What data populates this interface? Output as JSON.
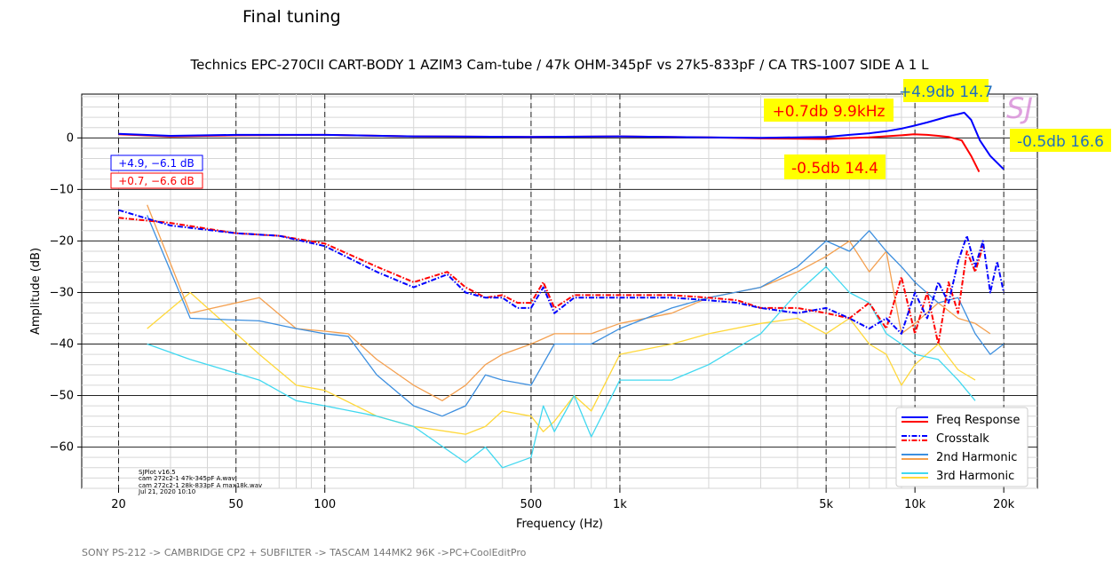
{
  "heading": "Final tuning",
  "footer": "SONY PS-212 -> CAMBRIDGE CP2 +  SUBFILTER  -> TASCAM 144MK2 96K ->PC+CoolEditPro",
  "chart_data": {
    "type": "line",
    "title": "Technics EPC-270CII CART-BODY 1 AZIM3 Cam-tube   / 47k OHM-345pF vs 27k5-833pF / CA TRS-1007 SIDE A 1  L",
    "xlabel": "Frequency (Hz)",
    "ylabel": "Amplitude (dB)",
    "x_scale": "log",
    "xlim": [
      15,
      26000
    ],
    "ylim": [
      -68,
      8.5
    ],
    "x_ticks": [
      20,
      50,
      100,
      500,
      1000,
      5000,
      10000,
      20000
    ],
    "x_tick_labels": [
      "20",
      "50",
      "100",
      "500",
      "1k",
      "5k",
      "10k",
      "20k"
    ],
    "y_ticks": [
      0,
      -10,
      -20,
      -30,
      -40,
      -50,
      -60
    ],
    "y_tick_labels": [
      "0",
      "−10",
      "−20",
      "−30",
      "−40",
      "−50",
      "−60"
    ],
    "grid": true,
    "legend_position": "bottom-right",
    "watermark": "SJ",
    "stamp_lines": [
      "SJPlot v16.5",
      "cam 272c2-1 47k-345pF A.wav",
      "cam 272c2-1 28k-833pF A max18k.wav",
      "Jul 21, 2020 10:10"
    ],
    "boxes": [
      {
        "text": "+4.9, −6.1 dB",
        "color": "#0000ff"
      },
      {
        "text": "+0.7, −6.6 dB",
        "color": "#ff0000"
      }
    ],
    "annotations": [
      {
        "text": "+4.9db 14.7",
        "color": "#1f6fbf"
      },
      {
        "text": "+0.7db 9.9kHz",
        "color": "#ff0000"
      },
      {
        "text": "-0.5db 16.6",
        "color": "#1f6fbf"
      },
      {
        "text": "-0.5db 14.4",
        "color": "#ff0000"
      }
    ],
    "series": [
      {
        "name": "Freq Response",
        "color": "#0000ff",
        "style": "solid",
        "x": [
          20,
          30,
          50,
          100,
          200,
          500,
          1000,
          2000,
          3000,
          5000,
          6000,
          7000,
          8000,
          9000,
          10000,
          11000,
          12000,
          13000,
          14000,
          14700,
          15500,
          16600,
          18000,
          20000
        ],
        "y": [
          0.8,
          0.4,
          0.6,
          0.6,
          0.3,
          0.2,
          0.3,
          0.1,
          0.0,
          0.2,
          0.6,
          0.9,
          1.3,
          1.8,
          2.4,
          3.0,
          3.6,
          4.2,
          4.6,
          4.9,
          3.5,
          -0.5,
          -3.5,
          -6.1
        ]
      },
      {
        "name": "",
        "color": "#ff0000",
        "style": "solid",
        "x": [
          20,
          30,
          50,
          100,
          200,
          500,
          1000,
          2000,
          3000,
          5000,
          7000,
          9000,
          9900,
          11000,
          12000,
          13000,
          14400,
          15500,
          16500
        ],
        "y": [
          0.7,
          0.3,
          0.5,
          0.6,
          0.3,
          0.2,
          0.3,
          0.1,
          -0.1,
          -0.2,
          0.1,
          0.5,
          0.7,
          0.6,
          0.4,
          0.2,
          -0.5,
          -3.5,
          -6.6
        ]
      },
      {
        "name": "Crosstalk",
        "color": "#0000ff",
        "style": "dashdot",
        "x": [
          20,
          30,
          50,
          70,
          100,
          150,
          200,
          260,
          300,
          350,
          400,
          450,
          500,
          550,
          600,
          700,
          1000,
          1500,
          2000,
          2500,
          3000,
          4000,
          5000,
          6000,
          7000,
          8000,
          9000,
          10000,
          11000,
          12000,
          13000,
          14000,
          15000,
          16000,
          17000,
          18000,
          19000,
          20000
        ],
        "y": [
          -14,
          -17,
          -18.5,
          -19,
          -21,
          -26,
          -29,
          -26.5,
          -30,
          -31,
          -31,
          -33,
          -33,
          -29,
          -34,
          -31,
          -31,
          -31,
          -31.5,
          -32,
          -33,
          -34,
          -33,
          -35,
          -37,
          -35,
          -38,
          -30,
          -35,
          -28,
          -32,
          -24,
          -19,
          -25,
          -20,
          -30,
          -24,
          -30
        ]
      },
      {
        "name": "",
        "color": "#ff0000",
        "style": "dashdot",
        "x": [
          20,
          30,
          50,
          70,
          100,
          150,
          200,
          260,
          300,
          350,
          400,
          450,
          500,
          550,
          600,
          700,
          1000,
          1500,
          2000,
          2500,
          3000,
          4000,
          5000,
          6000,
          7000,
          8000,
          9000,
          10000,
          11000,
          12000,
          13000,
          14000,
          15000,
          16000,
          17000
        ],
        "y": [
          -15.5,
          -16.5,
          -18.5,
          -19,
          -20.5,
          -25,
          -28,
          -26,
          -29,
          -31,
          -30.5,
          -32,
          -32,
          -28,
          -33,
          -30.5,
          -30.5,
          -30.5,
          -31,
          -31.5,
          -33,
          -33,
          -34,
          -35,
          -32,
          -37,
          -27,
          -38,
          -30,
          -40,
          -28,
          -34,
          -22,
          -26,
          -21
        ]
      },
      {
        "name": "2nd Harmonic",
        "color": "#3d8fdf",
        "style": "solid",
        "x": [
          25,
          35,
          60,
          80,
          100,
          120,
          150,
          200,
          250,
          300,
          350,
          400,
          500,
          600,
          800,
          1000,
          1500,
          2000,
          3000,
          4000,
          5000,
          6000,
          7000,
          8000,
          9000,
          10000,
          12000,
          14000,
          16000,
          18000,
          20000
        ],
        "y": [
          -15,
          -35,
          -35.5,
          -37,
          -38,
          -38.5,
          -46,
          -52,
          -54,
          -52,
          -46,
          -47,
          -48,
          -40,
          -40,
          -37,
          -33,
          -31,
          -29,
          -25,
          -20,
          -22,
          -18,
          -22,
          -25,
          -28,
          -32,
          -31,
          -38,
          -42,
          -40
        ]
      },
      {
        "name": "",
        "color": "#f4a050",
        "style": "solid",
        "x": [
          25,
          35,
          60,
          80,
          100,
          120,
          150,
          200,
          250,
          300,
          350,
          400,
          500,
          600,
          800,
          1000,
          1500,
          2000,
          3000,
          4000,
          5000,
          6000,
          7000,
          8000,
          9000,
          10000,
          12000,
          14000,
          16000,
          18000
        ],
        "y": [
          -13,
          -34,
          -31,
          -37,
          -37.5,
          -38,
          -43,
          -48,
          -51,
          -48,
          -44,
          -42,
          -40,
          -38,
          -38,
          -36,
          -34,
          -31,
          -29,
          -26,
          -23,
          -20,
          -26,
          -22,
          -38,
          -36,
          -32,
          -35,
          -36,
          -38
        ]
      },
      {
        "name": "3rd Harmonic",
        "color": "#40d8f0",
        "style": "solid",
        "x": [
          25,
          35,
          60,
          80,
          100,
          150,
          200,
          300,
          350,
          400,
          500,
          550,
          600,
          700,
          800,
          1000,
          1500,
          2000,
          3000,
          4000,
          5000,
          6000,
          7000,
          8000,
          9000,
          10000,
          12000,
          14000,
          16000
        ],
        "y": [
          -40,
          -43,
          -47,
          -51,
          -52,
          -54,
          -56,
          -63,
          -60,
          -64,
          -62,
          -52,
          -57,
          -50,
          -58,
          -47,
          -47,
          -44,
          -38,
          -30,
          -25,
          -30,
          -32,
          -38,
          -40,
          -42,
          -43,
          -47,
          -51
        ]
      },
      {
        "name": "",
        "color": "#ffd83a",
        "style": "solid",
        "x": [
          25,
          35,
          60,
          80,
          100,
          150,
          200,
          300,
          350,
          400,
          500,
          550,
          600,
          700,
          800,
          1000,
          1500,
          2000,
          3000,
          4000,
          5000,
          6000,
          7000,
          8000,
          9000,
          10000,
          12000,
          14000,
          16000
        ],
        "y": [
          -37,
          -30,
          -42,
          -48,
          -49,
          -54,
          -56,
          -57.5,
          -56,
          -53,
          -54,
          -57,
          -55,
          -50,
          -53,
          -42,
          -40,
          -38,
          -36,
          -35,
          -38,
          -35,
          -40,
          -42,
          -48,
          -44,
          -40,
          -45,
          -47
        ]
      }
    ]
  }
}
